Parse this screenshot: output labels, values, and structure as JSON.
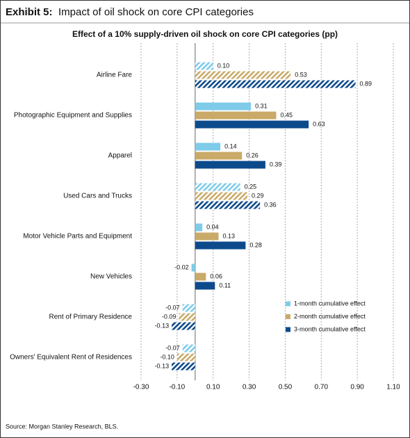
{
  "header": {
    "label": "Exhibit 5:",
    "title": "Impact of oil shock on core CPI categories"
  },
  "footer": "Source: Morgan Stanley Research, BLS.",
  "chart_data": {
    "type": "hbar",
    "title": "Effect of a 10% supply-driven oil shock on core CPI categories (pp)",
    "categories": [
      "Airline Fare",
      "Photographic Equipment and Supplies",
      "Apparel",
      "Used Cars and Trucks",
      "Motor Vehicle Parts and Equipment",
      "New Vehicles",
      "Rent of Primary Residence",
      "Owners' Equivalent Rent of Residences"
    ],
    "hatched": [
      true,
      false,
      false,
      true,
      false,
      false,
      true,
      true
    ],
    "series": [
      {
        "name": "1-month cumulative effect",
        "color": "#7ecbea",
        "values": [
          0.1,
          0.31,
          0.14,
          0.25,
          0.04,
          -0.02,
          -0.07,
          -0.07
        ],
        "value_labels": [
          "0.10",
          "0.31",
          "0.14",
          "0.25",
          "0.04",
          "-0.02",
          "-0.07",
          "-0.07"
        ]
      },
      {
        "name": "2-month cumulative effect",
        "color": "#c9aa68",
        "values": [
          0.53,
          0.45,
          0.26,
          0.29,
          0.13,
          0.06,
          -0.09,
          -0.1
        ],
        "value_labels": [
          "0.53",
          "0.45",
          "0.26",
          "0.29",
          "0.13",
          "0.06",
          "-0.09",
          "-0.10"
        ]
      },
      {
        "name": "3-month cumulative effect",
        "color": "#0d4a8c",
        "values": [
          0.89,
          0.63,
          0.39,
          0.36,
          0.28,
          0.11,
          -0.13,
          -0.13
        ],
        "value_labels": [
          "0.89",
          "0.63",
          "0.39",
          "0.36",
          "0.28",
          "0.11",
          "-0.13",
          "-0.13"
        ]
      }
    ],
    "xlim": [
      -0.3,
      1.1
    ],
    "xticks": [
      {
        "value": -0.3,
        "label": "-0.30"
      },
      {
        "value": -0.1,
        "label": "-0.10"
      },
      {
        "value": 0.1,
        "label": "0.10"
      },
      {
        "value": 0.3,
        "label": "0.30"
      },
      {
        "value": 0.5,
        "label": "0.50"
      },
      {
        "value": 0.7,
        "label": "0.70"
      },
      {
        "value": 0.9,
        "label": "0.90"
      },
      {
        "value": 1.1,
        "label": "1.10"
      }
    ],
    "grid": true,
    "legend": "lower right"
  }
}
